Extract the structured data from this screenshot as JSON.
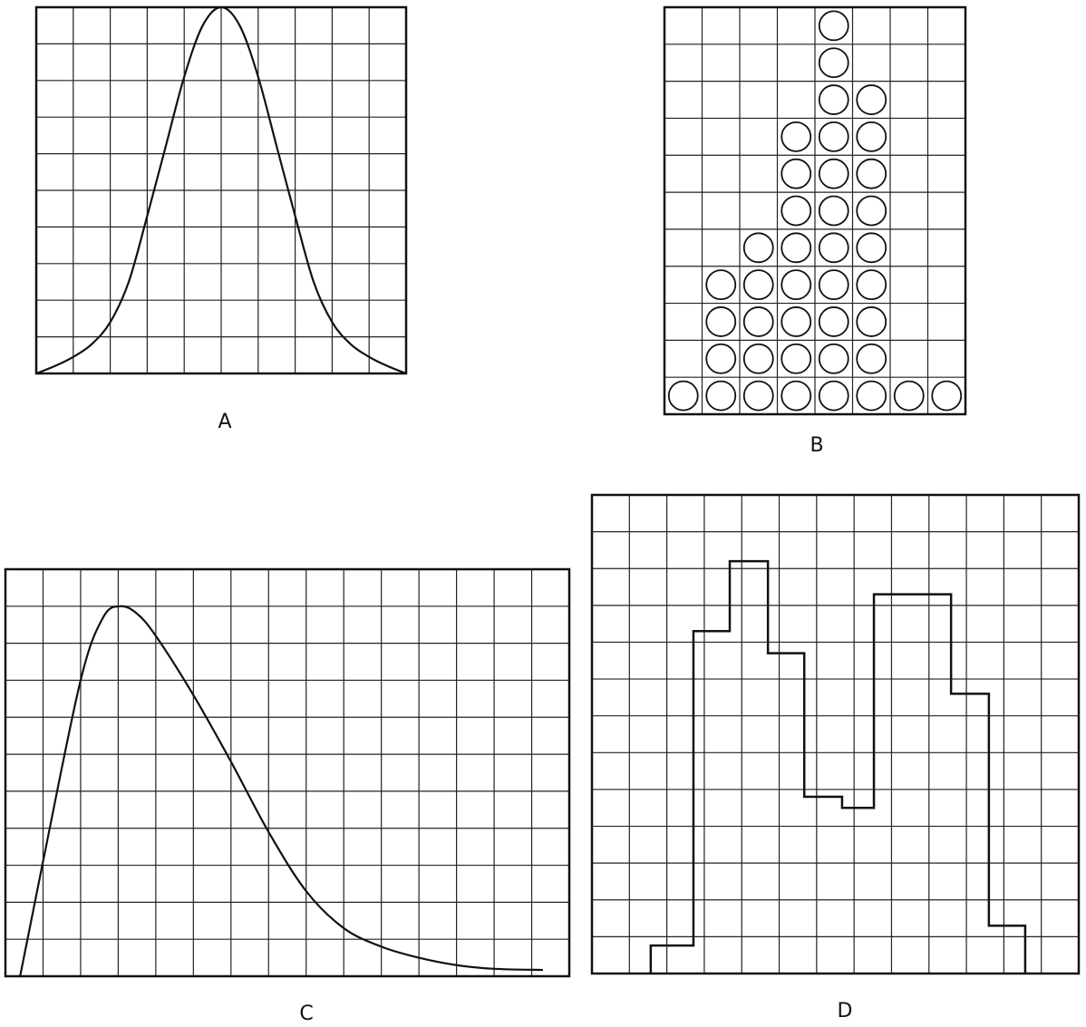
{
  "colors": {
    "ink": "#111111",
    "grid": "#222222",
    "background": "#ffffff"
  },
  "chart_data": [
    {
      "panel": "A",
      "label": "A",
      "type": "line",
      "grid": true,
      "grid_cells": [
        10,
        10
      ],
      "xlim": [
        0,
        10
      ],
      "ylim": [
        0,
        10
      ],
      "x": [
        0,
        0.5,
        1,
        1.5,
        2,
        2.5,
        3,
        3.5,
        4,
        4.5,
        5,
        5.5,
        6,
        6.5,
        7,
        7.5,
        8,
        8.5,
        9,
        9.5,
        10
      ],
      "y": [
        0,
        0.2,
        0.45,
        0.8,
        1.4,
        2.5,
        4.3,
        6.2,
        8.1,
        9.5,
        10,
        9.5,
        8.1,
        6.2,
        4.3,
        2.5,
        1.4,
        0.8,
        0.45,
        0.2,
        0
      ]
    },
    {
      "panel": "B",
      "label": "B",
      "type": "scatter",
      "style": "stacked circles (dot histogram)",
      "grid": true,
      "grid_cells": [
        8,
        11
      ],
      "categories": [
        1,
        2,
        3,
        4,
        5,
        6,
        7,
        8
      ],
      "values": [
        1,
        4,
        5,
        8,
        11,
        9,
        1,
        1
      ]
    },
    {
      "panel": "C",
      "label": "C",
      "type": "line",
      "grid": true,
      "grid_cells": [
        15,
        11
      ],
      "xlim": [
        0,
        15
      ],
      "ylim": [
        0,
        11
      ],
      "x": [
        0.39,
        1,
        2,
        2.6,
        3.06,
        3.5,
        4,
        5,
        6,
        7,
        8,
        9,
        10,
        11,
        12,
        13,
        14.3
      ],
      "y": [
        0,
        3.1,
        8.0,
        9.7,
        10.0,
        9.8,
        9.2,
        7.6,
        5.8,
        3.9,
        2.3,
        1.3,
        0.8,
        0.5,
        0.3,
        0.2,
        0.17
      ]
    },
    {
      "panel": "D",
      "label": "D",
      "type": "bar",
      "style": "step histogram outline",
      "grid": true,
      "grid_cells": [
        13,
        13
      ],
      "xlim": [
        0,
        13
      ],
      "ylim": [
        0,
        13
      ],
      "bin_edges": [
        1.57,
        2.71,
        3.68,
        4.7,
        5.67,
        6.68,
        7.53,
        9.59,
        10.6,
        11.57
      ],
      "values": [
        0.76,
        9.3,
        11.2,
        8.7,
        4.8,
        4.5,
        10.3,
        7.6,
        1.3
      ]
    }
  ]
}
